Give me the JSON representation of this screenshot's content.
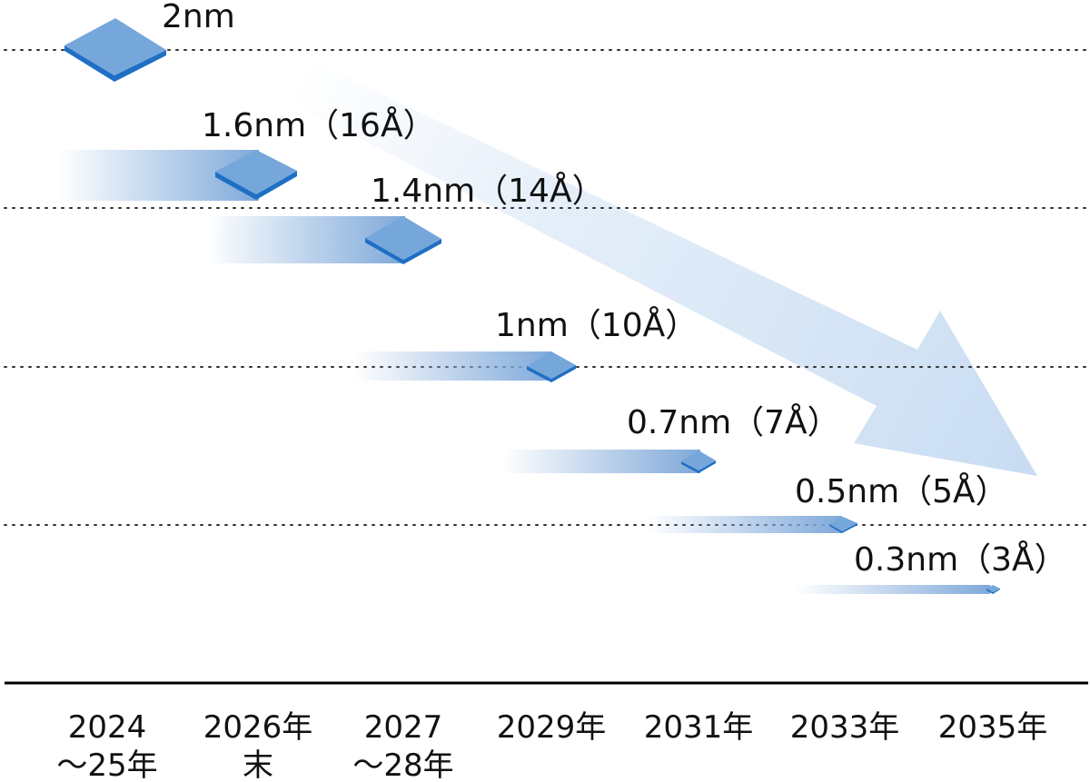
{
  "nodes": [
    {
      "id": "2nm",
      "label": "2nm"
    },
    {
      "id": "1.6nm",
      "label": "1.6nm（16Å）"
    },
    {
      "id": "1.4nm",
      "label": "1.4nm（14Å）"
    },
    {
      "id": "1nm",
      "label": "1nm（10Å）"
    },
    {
      "id": "0.7nm",
      "label": "0.7nm（7Å）"
    },
    {
      "id": "0.5nm",
      "label": "0.5nm（5Å）"
    },
    {
      "id": "0.3nm",
      "label": "0.3nm（3Å）"
    }
  ],
  "timeline": [
    {
      "line1": "2024",
      "line2": "～25年"
    },
    {
      "line1": "2026年",
      "line2": "末"
    },
    {
      "line1": "2027",
      "line2": "～28年"
    },
    {
      "line1": "2029年",
      "line2": ""
    },
    {
      "line1": "2031年",
      "line2": ""
    },
    {
      "line1": "2033年",
      "line2": ""
    },
    {
      "line1": "2035年",
      "line2": ""
    }
  ],
  "colors": {
    "diamond_top": "#76A7DB",
    "diamond_edge": "#1F6FC4",
    "trail": "#7FA9DA",
    "arrow": "#CFE1F4",
    "axis": "#000000",
    "gridline": "#333333"
  }
}
